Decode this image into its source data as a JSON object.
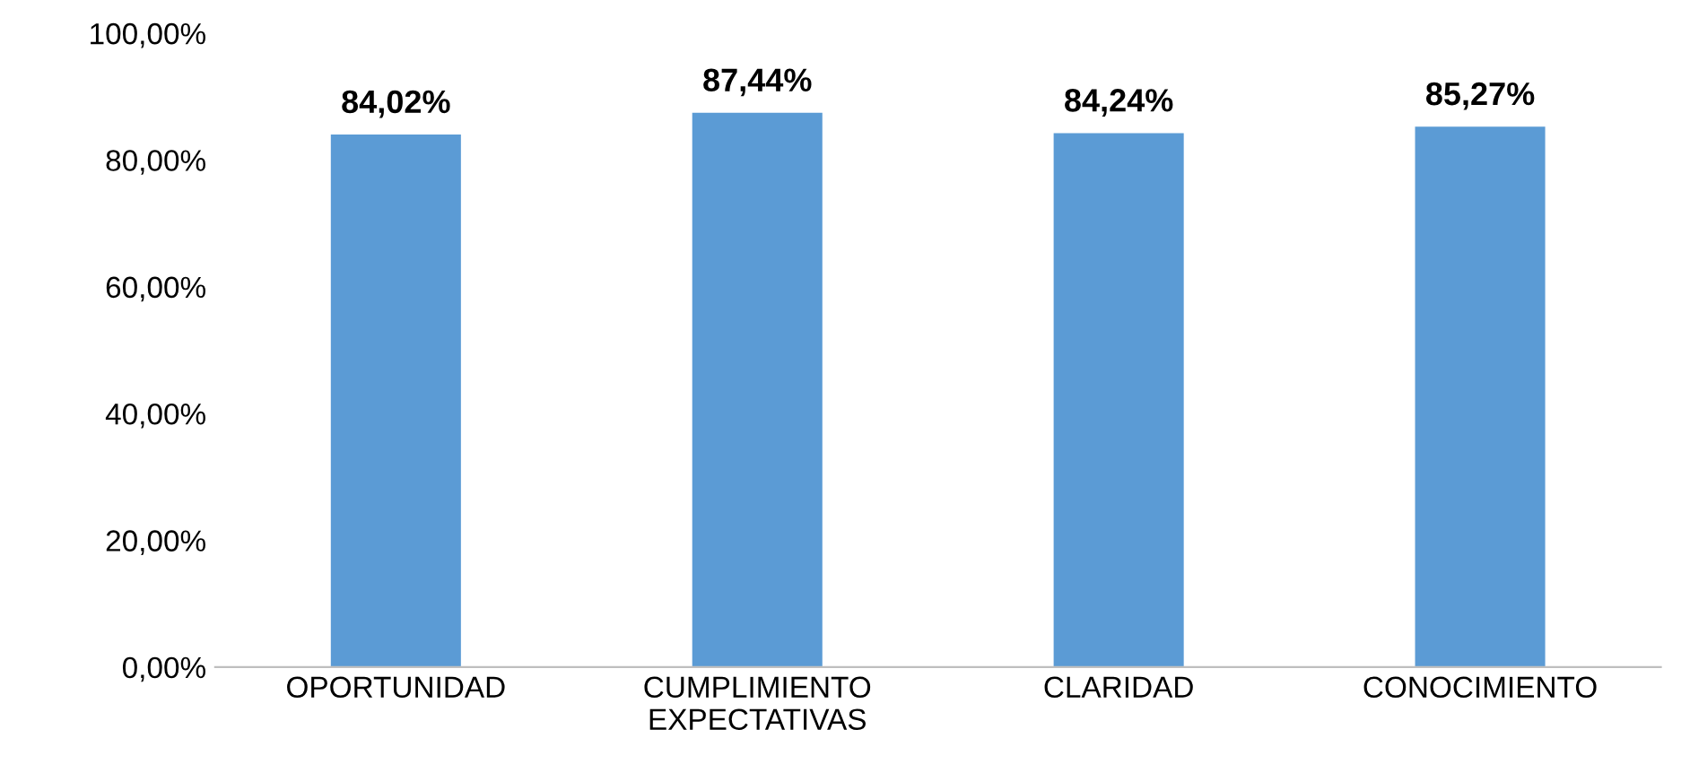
{
  "chart_data": {
    "type": "bar",
    "categories": [
      "OPORTUNIDAD",
      "CUMPLIMIENTO\nEXPECTATIVAS",
      "CLARIDAD",
      "CONOCIMIENTO"
    ],
    "values": [
      84.02,
      87.44,
      84.24,
      85.27
    ],
    "color": "#5b9bd5",
    "value_labels": [
      "84,02%",
      "87,44%",
      "84,24%",
      "85,27%"
    ],
    "ylim": [
      0,
      100
    ],
    "yticks": [
      {
        "value": 0,
        "label": "0,00%"
      },
      {
        "value": 20,
        "label": "20,00%"
      },
      {
        "value": 40,
        "label": "40,00%"
      },
      {
        "value": 60,
        "label": "60,00%"
      },
      {
        "value": 80,
        "label": "80,00%"
      },
      {
        "value": 100,
        "label": "100,00%"
      }
    ],
    "grid": false,
    "legend": false
  }
}
